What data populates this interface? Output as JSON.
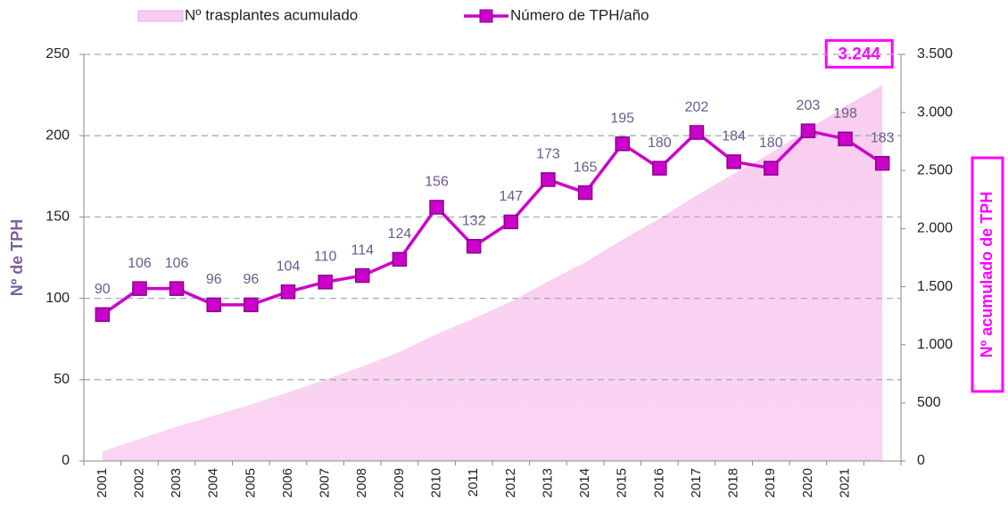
{
  "chart_data": {
    "type": "line",
    "categories": [
      "2001",
      "2002",
      "2003",
      "2004",
      "2005",
      "2006",
      "2007",
      "2008",
      "2009",
      "2010",
      "2011",
      "2012",
      "2013",
      "2014",
      "2015",
      "2016",
      "2017",
      "2018",
      "2019",
      "2020",
      "2021",
      null
    ],
    "series": [
      {
        "name": "Nº trasplantes acumulado",
        "kind": "area",
        "axis": "y2",
        "color": "#f9cdf0",
        "values": [
          90,
          196,
          302,
          398,
          494,
          598,
          708,
          822,
          946,
          1102,
          1234,
          1381,
          1554,
          1719,
          1914,
          2094,
          2296,
          2480,
          2660,
          2863,
          3061,
          3244
        ]
      },
      {
        "name": "Número de TPH/año",
        "kind": "line",
        "color": "#cc00cc",
        "values": [
          90,
          106,
          106,
          96,
          96,
          104,
          110,
          114,
          124,
          156,
          132,
          147,
          173,
          165,
          195,
          180,
          202,
          184,
          180,
          203,
          198,
          183
        ]
      }
    ],
    "annotation": "3.244",
    "ylabel": "Nº de TPH",
    "y2label": "Nº acumulado de TPH",
    "ylim": [
      0,
      250
    ],
    "yticks": [
      0,
      50,
      100,
      150,
      200,
      250
    ],
    "y2lim": [
      0,
      3500
    ],
    "y2ticks": [
      0,
      500,
      {
        "value": 1000,
        "label": "1.000"
      },
      {
        "value": 1500,
        "label": "1.500"
      },
      {
        "value": 2000,
        "label": "2.000"
      },
      {
        "value": 2500,
        "label": "2.500"
      },
      {
        "value": 3000,
        "label": "3.000"
      },
      {
        "value": 3500,
        "label": "3.500"
      }
    ],
    "grid": true
  }
}
